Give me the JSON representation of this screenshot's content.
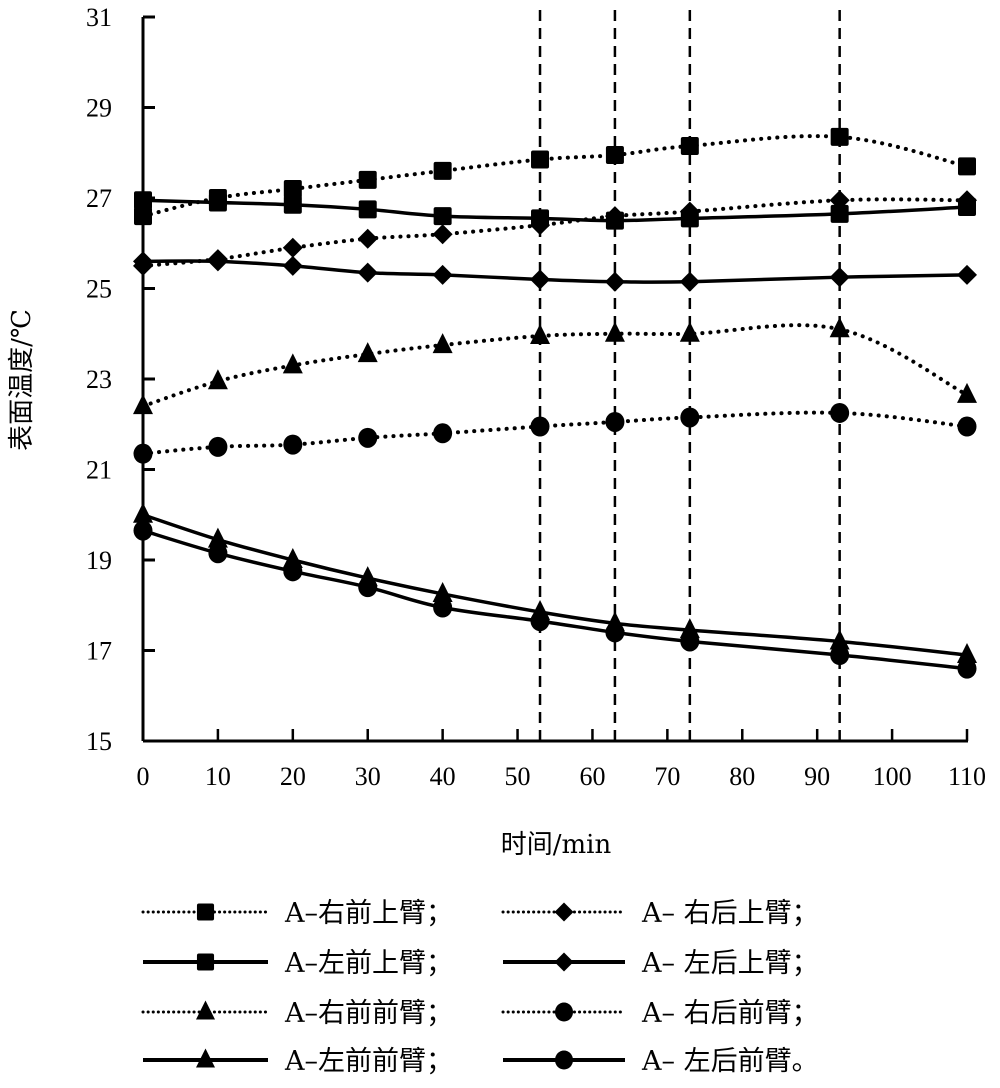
{
  "chart_data": {
    "type": "line",
    "title": "",
    "xlabel": "时间/min",
    "ylabel": "表面温度/℃",
    "xlim": [
      0,
      110
    ],
    "ylim": [
      15,
      31
    ],
    "x_ticks": [
      "0",
      "10",
      "20",
      "30",
      "40",
      "50",
      "60",
      "70",
      "80",
      "90",
      "100",
      "110"
    ],
    "y_ticks": [
      "15",
      "17",
      "19",
      "21",
      "23",
      "25",
      "27",
      "29",
      "31"
    ],
    "grid": false,
    "reference_lines_x": [
      53,
      63,
      73,
      93
    ],
    "x": [
      0,
      10,
      20,
      30,
      40,
      53,
      63,
      73,
      93,
      110
    ],
    "series": [
      {
        "name": "A–右前上臂；",
        "marker": "square",
        "line": "dotted",
        "values": [
          26.6,
          27.0,
          27.2,
          27.4,
          27.6,
          27.85,
          27.95,
          28.15,
          28.35,
          27.7
        ]
      },
      {
        "name": "A– 右后上臂；",
        "marker": "diamond",
        "line": "dotted",
        "values": [
          25.5,
          25.65,
          25.9,
          26.1,
          26.2,
          26.4,
          26.6,
          26.7,
          26.95,
          26.95
        ]
      },
      {
        "name": "A–左前上臂；",
        "marker": "square",
        "line": "solid",
        "values": [
          26.95,
          26.9,
          26.85,
          26.75,
          26.6,
          26.55,
          26.5,
          26.55,
          26.65,
          26.8
        ]
      },
      {
        "name": "A– 左后上臂；",
        "marker": "diamond",
        "line": "solid",
        "values": [
          25.6,
          25.6,
          25.5,
          25.35,
          25.3,
          25.2,
          25.15,
          25.15,
          25.25,
          25.3
        ]
      },
      {
        "name": "A–右前前臂；",
        "marker": "triangle",
        "line": "dotted",
        "values": [
          22.4,
          22.95,
          23.3,
          23.55,
          23.75,
          23.95,
          24.0,
          24.0,
          24.1,
          22.65
        ]
      },
      {
        "name": "A– 右后前臂；",
        "marker": "circle",
        "line": "dotted",
        "values": [
          21.35,
          21.5,
          21.55,
          21.7,
          21.8,
          21.95,
          22.05,
          22.15,
          22.25,
          21.95
        ]
      },
      {
        "name": "A–左前前臂；",
        "marker": "triangle",
        "line": "solid",
        "values": [
          20.0,
          19.45,
          19.0,
          18.6,
          18.25,
          17.85,
          17.6,
          17.45,
          17.2,
          16.9
        ]
      },
      {
        "name": "A– 左后前臂。",
        "marker": "circle",
        "line": "solid",
        "values": [
          19.65,
          19.15,
          18.75,
          18.4,
          17.95,
          17.65,
          17.4,
          17.2,
          16.9,
          16.6
        ]
      }
    ],
    "legend_position": "bottom",
    "colors": {
      "line": "#000000",
      "background": "#ffffff"
    }
  }
}
